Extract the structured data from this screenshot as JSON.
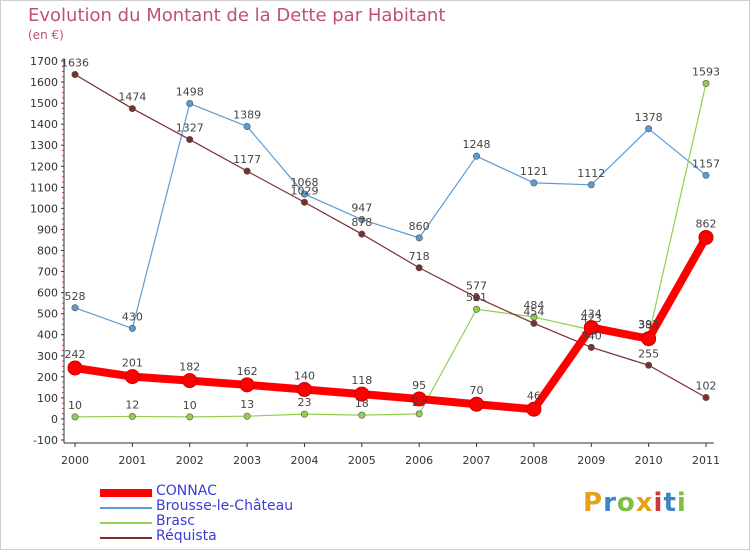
{
  "header": {
    "title": "Evolution du Montant de la Dette par Habitant",
    "unit": "(en €)"
  },
  "logo": {
    "text": "Proxiti",
    "colors": [
      "#e8a21a",
      "#3a86c8",
      "#7cc043",
      "#e8a21a",
      "#d0343c",
      "#3a86c8",
      "#7cc043"
    ]
  },
  "chart_data": {
    "type": "line",
    "title": "Evolution du Montant de la Dette par Habitant",
    "ylabel": "(en €)",
    "x": [
      "2000",
      "2001",
      "2002",
      "2003",
      "2004",
      "2005",
      "2006",
      "2007",
      "2008",
      "2009",
      "2010",
      "2011"
    ],
    "ylim": [
      -100,
      1700
    ],
    "yticks": [
      -100,
      0,
      100,
      200,
      300,
      400,
      500,
      600,
      700,
      800,
      900,
      1000,
      1100,
      1200,
      1300,
      1400,
      1500,
      1600,
      1700
    ],
    "grid": false,
    "legend_position": "bottom-left",
    "series": [
      {
        "name": "CONNAC",
        "color": "#ff0000",
        "values": [
          242,
          201,
          182,
          162,
          140,
          118,
          95,
          70,
          46,
          434,
          381,
          862
        ]
      },
      {
        "name": "Brousse-le-Château",
        "color": "#5b9bd5",
        "values": [
          528,
          430,
          1498,
          1389,
          1068,
          947,
          860,
          1248,
          1121,
          1112,
          1378,
          1157
        ]
      },
      {
        "name": "Brasc",
        "color": "#92d050",
        "values": [
          10,
          12,
          10,
          13,
          23,
          18,
          24,
          521,
          484,
          423,
          393,
          1593
        ]
      },
      {
        "name": "Réquista",
        "color": "#7b2e2e",
        "values": [
          1636,
          1474,
          1327,
          1177,
          1029,
          878,
          718,
          577,
          454,
          340,
          255,
          102
        ]
      }
    ]
  }
}
